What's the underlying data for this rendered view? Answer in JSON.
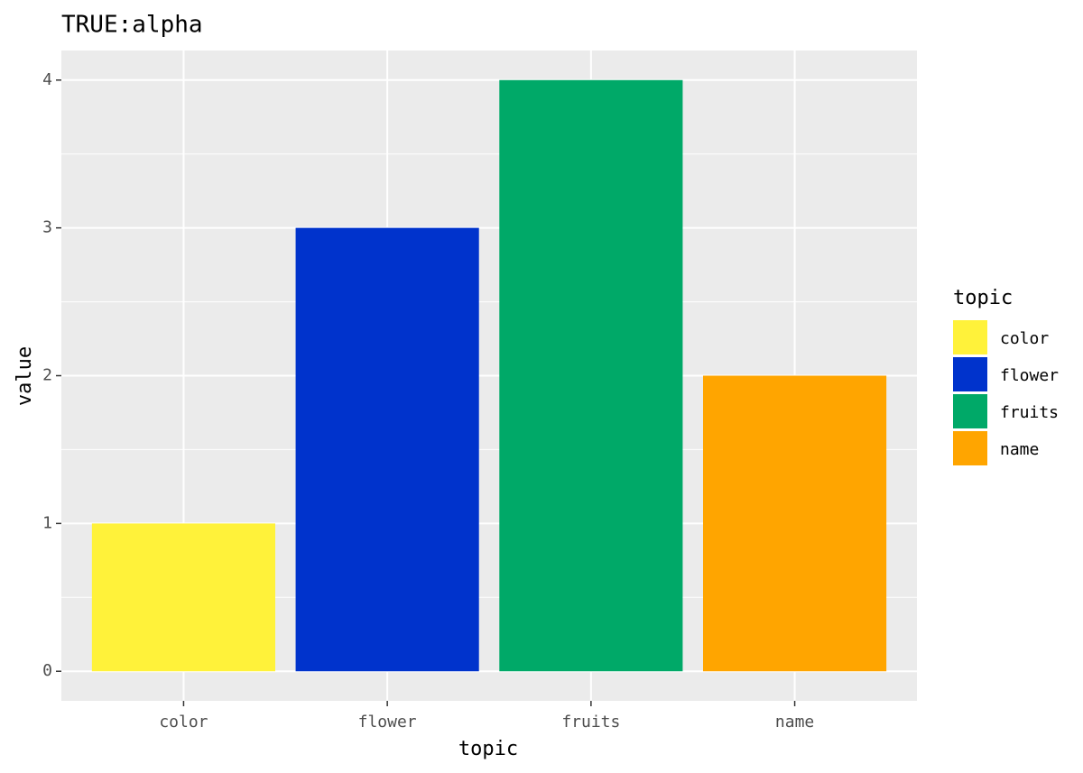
{
  "chart_data": {
    "type": "bar",
    "title": "TRUE:alpha",
    "x_label": "topic",
    "y_label": "value",
    "categories": [
      "color",
      "flower",
      "fruits",
      "name"
    ],
    "values": [
      1,
      3,
      4,
      2
    ],
    "colors": [
      "#fff23a",
      "#0033cc",
      "#00a968",
      "#ffa500"
    ],
    "ylim": [
      -0.2,
      4.2
    ],
    "yticks": [
      0,
      1,
      2,
      3,
      4
    ],
    "grid": true,
    "legend_title": "topic",
    "legend_position": "right"
  }
}
